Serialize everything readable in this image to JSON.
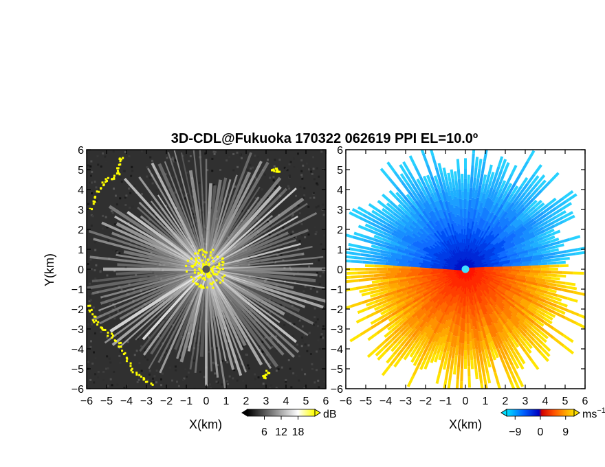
{
  "figure": {
    "title": "3D-CDL@Fukuoka 170322 062619 PPI EL=10.0º"
  },
  "chart_data": [
    {
      "type": "heatmap",
      "panel": "reflectivity",
      "xlabel": "X(km)",
      "ylabel": "Y(km)",
      "xlim": [
        -6,
        6
      ],
      "ylim": [
        -6,
        6
      ],
      "xticks": [
        -6,
        -5,
        -4,
        -3,
        -2,
        -1,
        0,
        1,
        2,
        3,
        4,
        5,
        6
      ],
      "yticks": [
        -6,
        -5,
        -4,
        -3,
        -2,
        -1,
        0,
        1,
        2,
        3,
        4,
        5,
        6
      ],
      "colorbar": {
        "unit": "dB",
        "ticks": [
          6,
          12,
          18
        ],
        "range": [
          0,
          24
        ],
        "colors": [
          "#000000",
          "#ffffff",
          "#ffff00"
        ]
      },
      "max_range_km": 6,
      "background_color": "#303030",
      "center_marker": {
        "x": 0,
        "y": 0,
        "color": "#555555"
      },
      "yellow_echo_color": "#ffff00"
    },
    {
      "type": "heatmap",
      "panel": "doppler_velocity",
      "xlabel": "X(km)",
      "ylabel": "",
      "xlim": [
        -6,
        6
      ],
      "ylim": [
        -6,
        6
      ],
      "xticks": [
        -6,
        -5,
        -4,
        -3,
        -2,
        -1,
        0,
        1,
        2,
        3,
        4,
        5,
        6
      ],
      "yticks": [
        -6,
        -5,
        -4,
        -3,
        -2,
        -1,
        0,
        1,
        2,
        3,
        4,
        5,
        6
      ],
      "colorbar": {
        "unit": "ms",
        "unit_exponent": "−1",
        "ticks": [
          -9,
          0,
          9
        ],
        "range": [
          -12,
          12
        ],
        "colors": [
          "#00e0ff",
          "#0050ff",
          "#0000d0",
          "#e00000",
          "#ff3000",
          "#ff9000",
          "#ffe000"
        ]
      },
      "max_range_km": 6,
      "center_marker": {
        "x": 0,
        "y": 0,
        "color": "#40e0ff"
      },
      "toward_color": "#1a4cff",
      "away_color": "#ff2a00"
    }
  ]
}
